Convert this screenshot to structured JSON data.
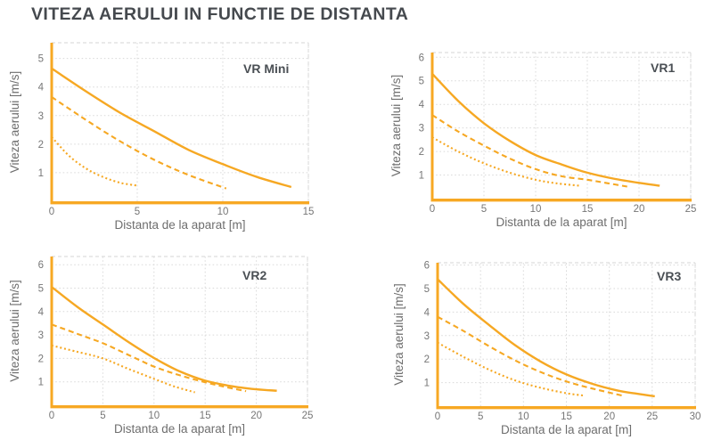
{
  "page_title": "VITEZA AERULUI IN FUNCTIE DE DISTANTA",
  "colors": {
    "background": "#FFFFFF",
    "accent_orange": "#F6A823",
    "axis_orange": "#F7A823",
    "grid_line": "#DADADA",
    "panel_border": "#D6D6D6",
    "title_text": "#45494E",
    "axis_label_text": "#6E6E6E",
    "tick_text": "#767676",
    "chart_label_text": "#4A4F54"
  },
  "chart_data": [
    {
      "type": "line",
      "title": "VR Mini",
      "xlabel": "Distanta de la aparat [m]",
      "ylabel": "Viteza aerului [m/s]",
      "xlim": [
        0,
        15
      ],
      "ylim": [
        0,
        5.55
      ],
      "xticks": [
        0,
        5,
        10,
        15
      ],
      "yticks": [
        1,
        2,
        3,
        4,
        5
      ],
      "grid": true,
      "legend_position": "top-right-inside",
      "series": [
        {
          "name": "solid",
          "style": "solid",
          "points": [
            [
              0,
              4.65
            ],
            [
              2,
              3.85
            ],
            [
              4,
              3.1
            ],
            [
              6,
              2.45
            ],
            [
              8,
              1.8
            ],
            [
              10,
              1.3
            ],
            [
              12,
              0.85
            ],
            [
              14,
              0.5
            ]
          ]
        },
        {
          "name": "dashed",
          "style": "dashed",
          "points": [
            [
              0,
              3.65
            ],
            [
              2,
              2.85
            ],
            [
              4,
              2.1
            ],
            [
              6,
              1.45
            ],
            [
              8,
              0.92
            ],
            [
              10.2,
              0.45
            ]
          ]
        },
        {
          "name": "dotted",
          "style": "dotted",
          "points": [
            [
              0,
              2.25
            ],
            [
              1,
              1.6
            ],
            [
              2,
              1.15
            ],
            [
              3,
              0.85
            ],
            [
              4,
              0.65
            ],
            [
              5,
              0.55
            ]
          ]
        }
      ]
    },
    {
      "type": "line",
      "title": "VR1",
      "xlabel": "Distanta de la aparat [m]",
      "ylabel": "Viteza aerului [m/s]",
      "xlim": [
        0,
        25
      ],
      "ylim": [
        0,
        6.2
      ],
      "xticks": [
        0,
        5,
        10,
        15,
        20,
        25
      ],
      "yticks": [
        1,
        2,
        3,
        4,
        5,
        6
      ],
      "grid": true,
      "legend_position": "top-right-inside",
      "series": [
        {
          "name": "solid",
          "style": "solid",
          "points": [
            [
              0,
              5.3
            ],
            [
              2.5,
              4.15
            ],
            [
              5,
              3.2
            ],
            [
              7.5,
              2.45
            ],
            [
              10,
              1.85
            ],
            [
              12.5,
              1.45
            ],
            [
              15,
              1.1
            ],
            [
              17.5,
              0.85
            ],
            [
              20,
              0.67
            ],
            [
              22,
              0.55
            ]
          ]
        },
        {
          "name": "dashed",
          "style": "dashed",
          "points": [
            [
              0,
              3.55
            ],
            [
              2.5,
              2.85
            ],
            [
              5,
              2.25
            ],
            [
              7.5,
              1.7
            ],
            [
              10,
              1.25
            ],
            [
              12.5,
              0.95
            ],
            [
              15,
              0.8
            ],
            [
              17,
              0.65
            ],
            [
              19,
              0.5
            ]
          ]
        },
        {
          "name": "dotted",
          "style": "dotted",
          "points": [
            [
              0,
              2.6
            ],
            [
              2.5,
              2.0
            ],
            [
              5,
              1.5
            ],
            [
              7.5,
              1.1
            ],
            [
              10,
              0.8
            ],
            [
              12,
              0.65
            ],
            [
              14.2,
              0.55
            ]
          ]
        }
      ]
    },
    {
      "type": "line",
      "title": "VR2",
      "xlabel": "Distanta de la aparat [m]",
      "ylabel": "Viteza aerului [m/s]",
      "xlim": [
        0,
        25
      ],
      "ylim": [
        0,
        6.35
      ],
      "xticks": [
        0,
        5,
        10,
        15,
        20,
        25
      ],
      "yticks": [
        1,
        2,
        3,
        4,
        5,
        6
      ],
      "grid": true,
      "legend_position": "top-right-inside",
      "series": [
        {
          "name": "solid",
          "style": "solid",
          "points": [
            [
              0,
              5.05
            ],
            [
              2.5,
              4.2
            ],
            [
              5,
              3.45
            ],
            [
              7.5,
              2.7
            ],
            [
              10,
              2.02
            ],
            [
              12.5,
              1.45
            ],
            [
              15,
              1.05
            ],
            [
              17.5,
              0.82
            ],
            [
              20,
              0.68
            ],
            [
              22,
              0.62
            ]
          ]
        },
        {
          "name": "dashed",
          "style": "dashed",
          "points": [
            [
              0,
              3.45
            ],
            [
              2.5,
              3.05
            ],
            [
              5,
              2.65
            ],
            [
              7.5,
              2.15
            ],
            [
              10,
              1.65
            ],
            [
              12.5,
              1.28
            ],
            [
              15,
              0.98
            ],
            [
              17,
              0.78
            ],
            [
              19,
              0.6
            ]
          ]
        },
        {
          "name": "dotted",
          "style": "dotted",
          "points": [
            [
              0,
              2.55
            ],
            [
              2.5,
              2.28
            ],
            [
              5,
              2.0
            ],
            [
              7.5,
              1.55
            ],
            [
              10,
              1.13
            ],
            [
              12,
              0.8
            ],
            [
              14,
              0.55
            ]
          ]
        }
      ]
    },
    {
      "type": "line",
      "title": "VR3",
      "xlabel": "Distanta de la aparat [m]",
      "ylabel": "Viteza aerului [m/s]",
      "xlim": [
        0,
        30
      ],
      "ylim": [
        0,
        6.1
      ],
      "xticks": [
        0,
        5,
        10,
        15,
        20,
        25,
        30
      ],
      "yticks": [
        1,
        2,
        3,
        4,
        5,
        6
      ],
      "grid": true,
      "legend_position": "top-right-inside",
      "series": [
        {
          "name": "solid",
          "style": "solid",
          "points": [
            [
              0,
              5.4
            ],
            [
              3,
              4.35
            ],
            [
              6,
              3.45
            ],
            [
              9,
              2.6
            ],
            [
              12,
              1.9
            ],
            [
              15,
              1.35
            ],
            [
              18,
              0.95
            ],
            [
              21,
              0.66
            ],
            [
              23,
              0.54
            ],
            [
              25.3,
              0.42
            ]
          ]
        },
        {
          "name": "dashed",
          "style": "dashed",
          "points": [
            [
              0,
              3.8
            ],
            [
              3,
              3.2
            ],
            [
              6,
              2.55
            ],
            [
              9,
              1.95
            ],
            [
              12,
              1.45
            ],
            [
              15,
              1.05
            ],
            [
              18,
              0.75
            ],
            [
              21.5,
              0.45
            ]
          ]
        },
        {
          "name": "dotted",
          "style": "dotted",
          "points": [
            [
              0,
              2.7
            ],
            [
              3,
              2.1
            ],
            [
              6,
              1.55
            ],
            [
              9,
              1.1
            ],
            [
              12,
              0.78
            ],
            [
              15,
              0.55
            ],
            [
              17,
              0.45
            ]
          ]
        }
      ]
    }
  ]
}
